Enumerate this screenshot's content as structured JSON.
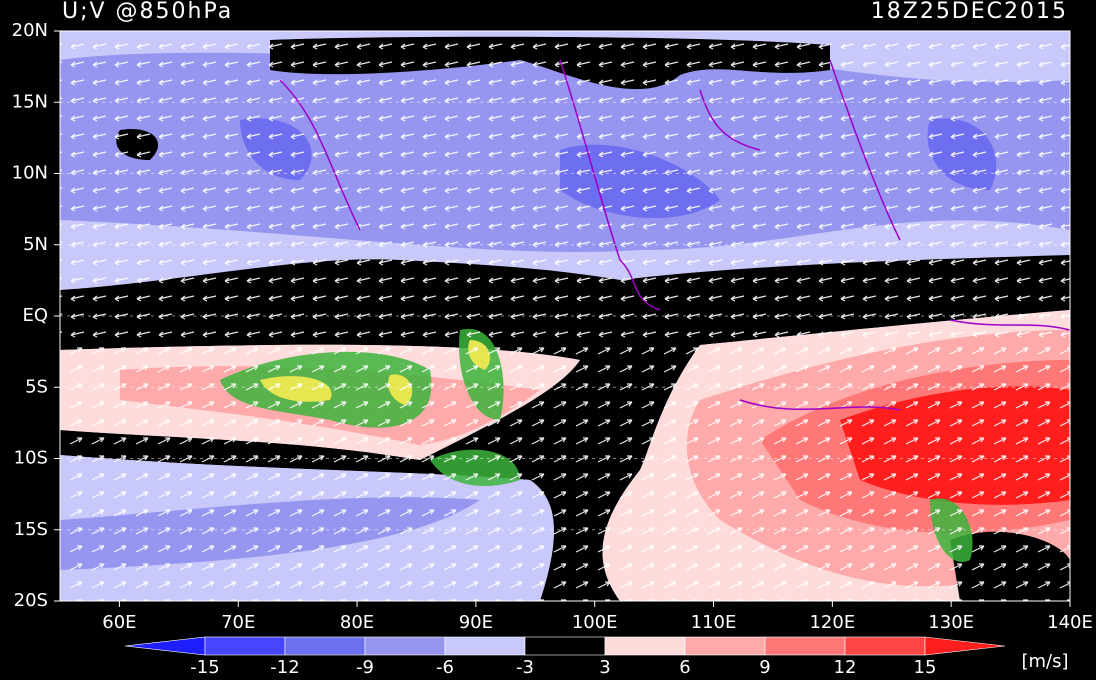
{
  "map": {
    "title": "U;V @850hPa",
    "time": "18Z25DEC2015",
    "xlim": [
      55,
      140
    ],
    "ylim": [
      -20,
      20
    ],
    "xticks": [
      {
        "value": 60,
        "label": "60E"
      },
      {
        "value": 70,
        "label": "70E"
      },
      {
        "value": 80,
        "label": "80E"
      },
      {
        "value": 90,
        "label": "90E"
      },
      {
        "value": 100,
        "label": "100E"
      },
      {
        "value": 110,
        "label": "110E"
      },
      {
        "value": 120,
        "label": "120E"
      },
      {
        "value": 130,
        "label": "130E"
      },
      {
        "value": 140,
        "label": "140E"
      }
    ],
    "yticks": [
      {
        "value": 20,
        "label": "20N"
      },
      {
        "value": 15,
        "label": "15N"
      },
      {
        "value": 10,
        "label": "10N"
      },
      {
        "value": 5,
        "label": "5N"
      },
      {
        "value": 0,
        "label": "EQ"
      },
      {
        "value": -5,
        "label": "5S"
      },
      {
        "value": -10,
        "label": "10S"
      },
      {
        "value": -15,
        "label": "15S"
      },
      {
        "value": -20,
        "label": "20S"
      }
    ],
    "colorbar": {
      "ticks": [
        -15,
        -12,
        -9,
        -6,
        -3,
        3,
        6,
        9,
        12,
        15
      ],
      "colors": [
        "#1e1eff",
        "#4646ff",
        "#6e6ef0",
        "#9696f0",
        "#c8c8fa",
        "#000000",
        "#ffdcdc",
        "#ffaaaa",
        "#ff7878",
        "#ff4646",
        "#ff1e1e"
      ],
      "unit": "[m/s]"
    }
  }
}
